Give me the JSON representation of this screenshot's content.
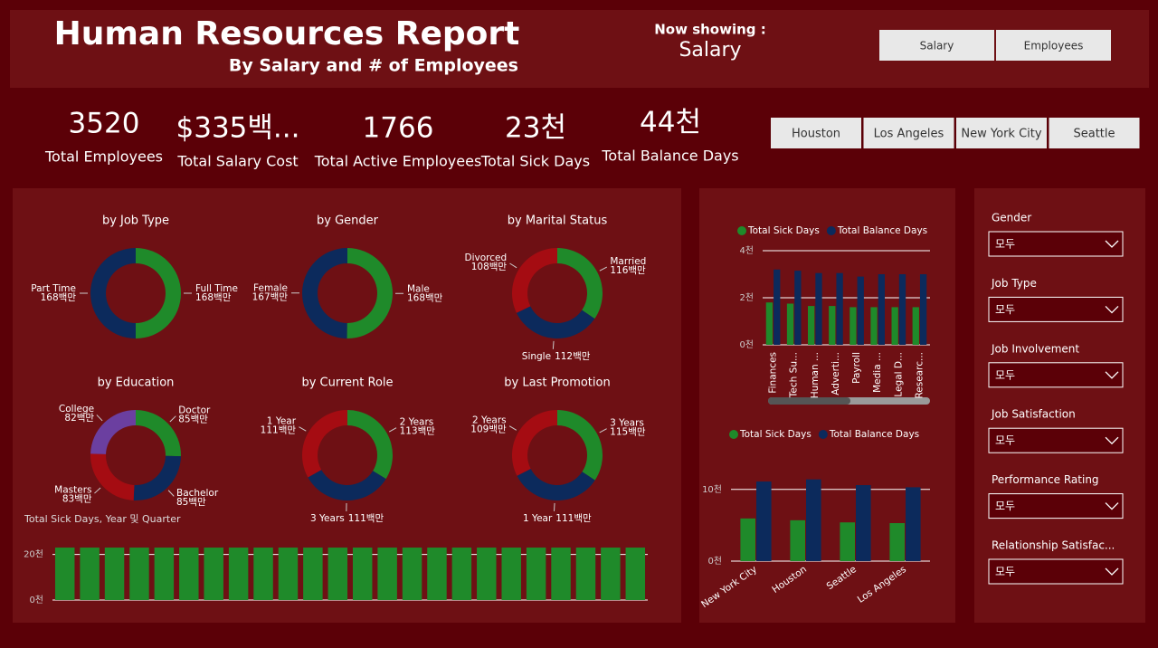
{
  "header": {
    "title": "Human Resources Report",
    "subtitle": "By Salary and # of Employees",
    "now_showing_label": "Now showing :",
    "now_showing_value": "Salary",
    "view_buttons": [
      "Salary",
      "Employees"
    ]
  },
  "kpis": [
    {
      "value": "3520",
      "label": "Total Employees"
    },
    {
      "value": "$335백...",
      "label": "Total Salary Cost"
    },
    {
      "value": "1766",
      "label": "Total Active Employees"
    },
    {
      "value": "23천",
      "label": "Total Sick Days"
    },
    {
      "value": "44천",
      "label": "Total Balance Days"
    }
  ],
  "city_buttons": [
    "Houston",
    "Los Angeles",
    "New York City",
    "Seattle"
  ],
  "filters": [
    {
      "label": "Gender",
      "value": "모두"
    },
    {
      "label": "Job Type",
      "value": "모두"
    },
    {
      "label": "Job Involvement",
      "value": "모두"
    },
    {
      "label": "Job Satisfaction",
      "value": "모두"
    },
    {
      "label": "Performance Rating",
      "value": "모두"
    },
    {
      "label": "Relationship Satisfac...",
      "value": "모두"
    }
  ],
  "chart_data": [
    {
      "type": "pie",
      "title": "by Job Type",
      "categories": [
        "Full Time",
        "Part Time"
      ],
      "values": [
        168,
        168
      ],
      "value_labels": [
        "168백만",
        "168백만"
      ],
      "colors": [
        "#1f8a2a",
        "#0c2a5c"
      ]
    },
    {
      "type": "pie",
      "title": "by Gender",
      "categories": [
        "Male",
        "Female"
      ],
      "values": [
        168,
        167
      ],
      "value_labels": [
        "168백만",
        "167백만"
      ],
      "colors": [
        "#1f8a2a",
        "#0c2a5c"
      ]
    },
    {
      "type": "pie",
      "title": "by Marital Status",
      "categories": [
        "Married",
        "Single",
        "Divorced"
      ],
      "values": [
        116,
        112,
        108
      ],
      "value_labels": [
        "116백만",
        "112백만",
        "108백만"
      ],
      "colors": [
        "#1f8a2a",
        "#0c2a5c",
        "#a50c12"
      ]
    },
    {
      "type": "pie",
      "title": "by Education",
      "categories": [
        "Doctor",
        "Bachelor",
        "Masters",
        "College"
      ],
      "values": [
        85,
        85,
        83,
        82
      ],
      "value_labels": [
        "85백만",
        "85백만",
        "83백만",
        "82백만"
      ],
      "colors": [
        "#1f8a2a",
        "#0c2a5c",
        "#a50c12",
        "#6b3fa0"
      ]
    },
    {
      "type": "pie",
      "title": "by Current Role",
      "categories": [
        "2 Years",
        "3 Years",
        "1 Year"
      ],
      "values": [
        113,
        111,
        111
      ],
      "value_labels": [
        "113백만",
        "111백만",
        "111백만"
      ],
      "colors": [
        "#1f8a2a",
        "#0c2a5c",
        "#a50c12"
      ]
    },
    {
      "type": "pie",
      "title": "by Last Promotion",
      "categories": [
        "3 Years",
        "1 Year",
        "2 Years"
      ],
      "values": [
        115,
        111,
        109
      ],
      "value_labels": [
        "115백만",
        "111백만",
        "109백만"
      ],
      "colors": [
        "#1f8a2a",
        "#0c2a5c",
        "#a50c12"
      ]
    },
    {
      "type": "bar",
      "title": "Total Sick Days, Year 및 Quarter",
      "categories": [
        null,
        null,
        null,
        null,
        null,
        null,
        null,
        null,
        null,
        null,
        null,
        null,
        null,
        null,
        null,
        null,
        null,
        null,
        null,
        null,
        null,
        null,
        null,
        null
      ],
      "values": [
        23,
        23,
        23,
        23,
        23,
        23,
        23,
        23,
        23,
        23,
        23,
        23,
        23,
        23,
        23,
        23,
        23,
        23,
        23,
        23,
        23,
        23,
        23,
        23
      ],
      "color": "#1f8a2a",
      "ylim": [
        0,
        25
      ],
      "yticks": [
        {
          "value": 0,
          "label": "0천"
        },
        {
          "value": 20,
          "label": "20천"
        }
      ],
      "grid": true
    },
    {
      "type": "bar",
      "categories": [
        "Finances",
        "Tech Su...",
        "Human ...",
        "Adverti...",
        "Payroll",
        "Media ...",
        "Legal D...",
        "Researc..."
      ],
      "series": [
        {
          "name": "Total Sick Days",
          "color": "#1f8a2a",
          "values": [
            1.8,
            1.75,
            1.65,
            1.65,
            1.6,
            1.6,
            1.6,
            1.6
          ]
        },
        {
          "name": "Total Balance Days",
          "color": "#0c2a5c",
          "values": [
            3.2,
            3.15,
            3.05,
            3.05,
            2.9,
            3.0,
            3.0,
            3.0
          ]
        }
      ],
      "ylim": [
        0,
        4
      ],
      "yticks": [
        {
          "value": 0,
          "label": "0천"
        },
        {
          "value": 2,
          "label": "2천"
        },
        {
          "value": 4,
          "label": "4천"
        }
      ],
      "grid": true
    },
    {
      "type": "bar",
      "categories": [
        "New York City",
        "Houston",
        "Seattle",
        "Los Angeles"
      ],
      "series": [
        {
          "name": "Total Sick Days",
          "color": "#1f8a2a",
          "values": [
            5.95,
            5.7,
            5.4,
            5.3
          ]
        },
        {
          "name": "Total Balance Days",
          "color": "#0c2a5c",
          "values": [
            11.1,
            11.4,
            10.6,
            10.3
          ]
        }
      ],
      "ylim": [
        0,
        13
      ],
      "yticks": [
        {
          "value": 0,
          "label": "0천"
        },
        {
          "value": 10,
          "label": "10천"
        }
      ],
      "grid": true
    }
  ]
}
